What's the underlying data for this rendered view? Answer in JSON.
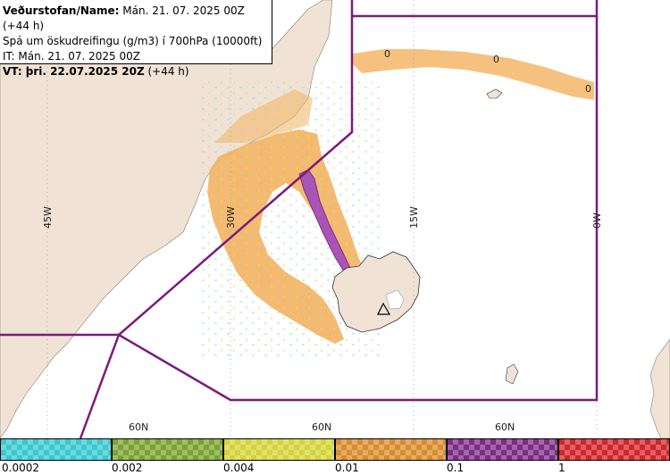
{
  "header": {
    "line1_label": "Veðurstofan/Name:",
    "line1_value": "Mán. 21. 07. 2025 00Z (+44 h)",
    "line2": "Spá um öskudreifingu (g/m3) í 700hPa (10000ft)",
    "line3": "IT: Mán. 21. 07. 2025 00Z",
    "line4_label": "VT: þri. 22.07.2025 20Z",
    "line4_value": "(+44 h)"
  },
  "map": {
    "lon_labels": [
      "45W",
      "30W",
      "15W",
      "0W"
    ],
    "lat_labels": [
      "60N",
      "60N",
      "60N"
    ],
    "contour_labels": [
      "0",
      "0",
      "0"
    ],
    "colors": {
      "land": "#f1e2d6",
      "sea": "#ffffff",
      "fir_boundary": "#7b1a7e",
      "ash_low": "#f4b25f",
      "ash_high": "#a855b5",
      "grid": "#9a9a9a"
    }
  },
  "legend": {
    "bins": [
      {
        "color": "#39c9cf"
      },
      {
        "color": "#7aa330"
      },
      {
        "color": "#d4d43a"
      },
      {
        "color": "#d88c2c"
      },
      {
        "color": "#7e2d86"
      },
      {
        "color": "#d1262a"
      }
    ],
    "tick_labels": [
      "0.0002",
      "0.002",
      "0.004",
      "0.01",
      "0.1",
      "1"
    ]
  }
}
